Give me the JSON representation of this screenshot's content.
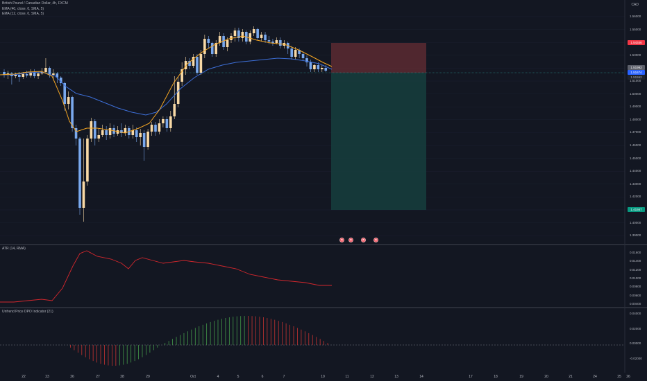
{
  "legend": {
    "symbol": "British Pound / Canadian Dollar, 4h, FXCM",
    "ema1": "EMA (40, close, 0, SMA, 5)",
    "ema2": "EMA (12, close, 0, SMA, 5)",
    "atr": "ATR (14, RMA)",
    "dpo": "Unfrend Price DPO Indicator (21)"
  },
  "currency": "CAD",
  "price_axis": [
    "1.56000",
    "1.55000",
    "1.54000",
    "1.53000",
    "1.52000",
    "1.51000",
    "1.50000",
    "1.49000",
    "1.48000",
    "1.47000",
    "1.46000",
    "1.45000",
    "1.44000",
    "1.43000",
    "1.42000",
    "1.41000",
    "1.40000",
    "1.39000"
  ],
  "price_tags": {
    "stop": "1.54346",
    "entry1": "1.51992",
    "entry2": "1.51674",
    "current": "1.51552",
    "target": "1.41567"
  },
  "atr_axis": [
    "0.01600",
    "0.01400",
    "0.01200",
    "0.01000",
    "0.00800",
    "0.00600",
    "0.00400"
  ],
  "dpo_axis": [
    "0.04000",
    "0.02000",
    "0.00000",
    "-0.02000"
  ],
  "time_axis": [
    "22",
    "23",
    "26",
    "27",
    "28",
    "29",
    "Oct",
    "4",
    "5",
    "6",
    "7",
    "10",
    "11",
    "12",
    "13",
    "14",
    "17",
    "18",
    "19",
    "20",
    "21",
    "24",
    "25",
    "26"
  ],
  "colors": {
    "bg": "#131722",
    "up": "#f8d9a6",
    "down": "#7aa9ee",
    "ema_fast": "#f5a623",
    "ema_slow": "#3d6fd8",
    "atr": "#d3272d",
    "dpo_up": "#4caf50",
    "dpo_down": "#e53935",
    "stop_zone": "#5c2a31",
    "target_zone": "#163c3c",
    "stop_tag": "#f23645",
    "target_tag": "#089981"
  },
  "event_icons": [
    "flag-icon",
    "flag-icon",
    "flag-icon",
    "flag-icon"
  ]
}
